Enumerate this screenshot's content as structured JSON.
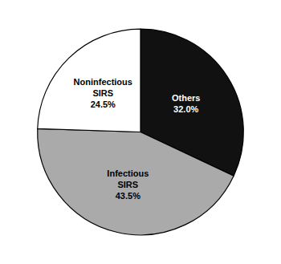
{
  "chart_data": {
    "type": "pie",
    "categories": [
      "Others",
      "Infectious\nSIRS",
      "Noninfectious\nSIRS"
    ],
    "values": [
      32.0,
      43.5,
      24.5
    ],
    "value_labels": [
      "32.0%",
      "43.5%",
      "24.5%"
    ],
    "colors": [
      "#111111",
      "#aaaaaa",
      "#ffffff"
    ],
    "data_labels": true
  }
}
